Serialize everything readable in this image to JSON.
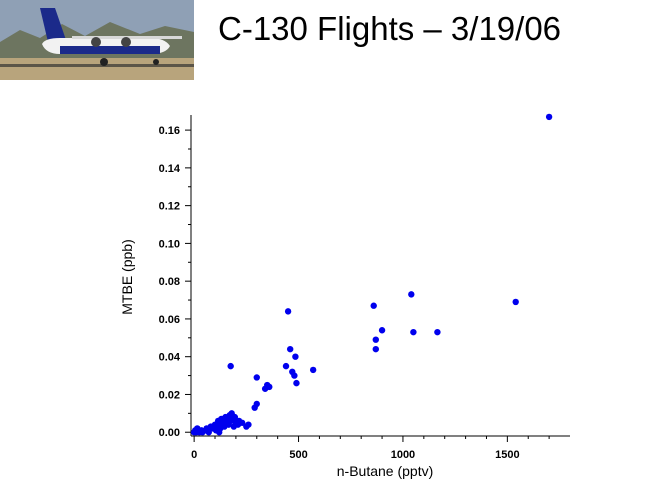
{
  "slide": {
    "title": "C-130 Flights – 3/19/06"
  },
  "photo": {
    "subject": "C-130 aircraft on runway",
    "colors": {
      "sky": "#8fa0b5",
      "mountains": "#6d7560",
      "ground": "#b8a47c",
      "fuselage": "#f2f2f2",
      "tail": "#1b2a8a"
    }
  },
  "chart_data": {
    "type": "scatter",
    "title": "",
    "xlabel": "n-Butane (pptv)",
    "ylabel": "MTBE (ppb)",
    "xlim": [
      -15,
      1800
    ],
    "ylim": [
      -0.002,
      0.168
    ],
    "xticks": [
      0,
      500,
      1000,
      1500
    ],
    "xtick_labels": [
      "0",
      "500",
      "1000",
      "1500"
    ],
    "yticks": [
      0,
      0.02,
      0.04,
      0.06,
      0.08,
      0.1,
      0.12,
      0.14,
      0.16
    ],
    "ytick_labels": [
      "0.00",
      "0.02",
      "0.04",
      "0.06",
      "0.08",
      "0.10",
      "0.12",
      "0.14",
      "0.16"
    ],
    "grid": false,
    "marker_color": "#0000ee",
    "points": [
      [
        0,
        0.0
      ],
      [
        5,
        0.001
      ],
      [
        10,
        0.0
      ],
      [
        15,
        0.002
      ],
      [
        20,
        0.001
      ],
      [
        25,
        0.0
      ],
      [
        35,
        0.001
      ],
      [
        40,
        0.0
      ],
      [
        55,
        0.001
      ],
      [
        60,
        0.002
      ],
      [
        70,
        0.0
      ],
      [
        80,
        0.003
      ],
      [
        90,
        0.002
      ],
      [
        100,
        0.004
      ],
      [
        105,
        0.001
      ],
      [
        110,
        0.003
      ],
      [
        115,
        0.006
      ],
      [
        120,
        0.005
      ],
      [
        125,
        0.002
      ],
      [
        130,
        0.007
      ],
      [
        135,
        0.004
      ],
      [
        140,
        0.006
      ],
      [
        145,
        0.003
      ],
      [
        150,
        0.008
      ],
      [
        155,
        0.005
      ],
      [
        160,
        0.007
      ],
      [
        165,
        0.004
      ],
      [
        170,
        0.009
      ],
      [
        175,
        0.006
      ],
      [
        180,
        0.01
      ],
      [
        185,
        0.007
      ],
      [
        190,
        0.003
      ],
      [
        195,
        0.008
      ],
      [
        200,
        0.005
      ],
      [
        210,
        0.004
      ],
      [
        215,
        0.006
      ],
      [
        230,
        0.005
      ],
      [
        250,
        0.003
      ],
      [
        260,
        0.004
      ],
      [
        120,
        0.0
      ],
      [
        175,
        0.035
      ],
      [
        290,
        0.013
      ],
      [
        300,
        0.015
      ],
      [
        300,
        0.029
      ],
      [
        340,
        0.023
      ],
      [
        350,
        0.025
      ],
      [
        360,
        0.024
      ],
      [
        440,
        0.035
      ],
      [
        450,
        0.064
      ],
      [
        460,
        0.044
      ],
      [
        470,
        0.032
      ],
      [
        480,
        0.03
      ],
      [
        485,
        0.04
      ],
      [
        490,
        0.026
      ],
      [
        570,
        0.033
      ],
      [
        860,
        0.067
      ],
      [
        870,
        0.049
      ],
      [
        870,
        0.044
      ],
      [
        900,
        0.054
      ],
      [
        1040,
        0.073
      ],
      [
        1050,
        0.053
      ],
      [
        1165,
        0.053
      ],
      [
        1540,
        0.069
      ],
      [
        1700,
        0.167
      ]
    ]
  }
}
